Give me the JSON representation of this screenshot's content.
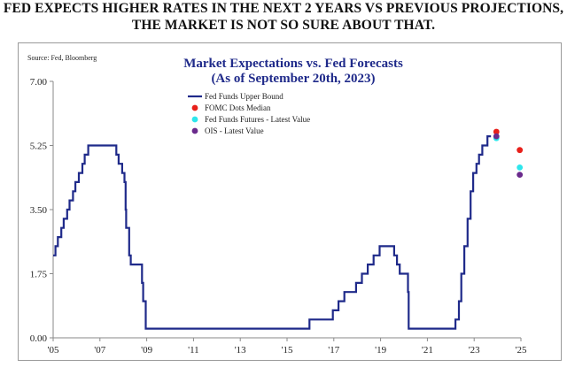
{
  "headline": {
    "line1": "FED EXPECTS HIGHER RATES IN THE NEXT 2 YEARS VS PREVIOUS PROJECTIONS,",
    "line2": "THE MARKET IS NOT SO SURE ABOUT THAT."
  },
  "chart_data": {
    "type": "line",
    "source": "Source: Fed, Bloomberg",
    "title": "Market Expectations vs. Fed Forecasts",
    "subtitle": "(As of September 20th, 2023)",
    "xlim": [
      2005.0,
      2025.0
    ],
    "ylim": [
      0.0,
      7.0
    ],
    "x_ticks": [
      2005,
      2007,
      2009,
      2011,
      2013,
      2015,
      2017,
      2019,
      2021,
      2023,
      2025
    ],
    "x_tick_labels": [
      "'05",
      "'07",
      "'09",
      "'11",
      "'13",
      "'15",
      "'17",
      "'19",
      "'21",
      "'23",
      "'25"
    ],
    "y_ticks": [
      0,
      1.75,
      3.5,
      5.25,
      7.0
    ],
    "y_tick_labels": [
      "0.00",
      "1.75",
      "3.50",
      "5.25",
      "7.00"
    ],
    "grid": false,
    "legend_position": "top-center",
    "series": [
      {
        "name": "Fed Funds Upper Bound",
        "color": "#1f2a8a",
        "kind": "step",
        "points": [
          [
            2005.0,
            2.25
          ],
          [
            2005.1,
            2.5
          ],
          [
            2005.2,
            2.75
          ],
          [
            2005.35,
            3.0
          ],
          [
            2005.45,
            3.25
          ],
          [
            2005.6,
            3.5
          ],
          [
            2005.7,
            3.75
          ],
          [
            2005.85,
            4.0
          ],
          [
            2005.95,
            4.25
          ],
          [
            2006.1,
            4.5
          ],
          [
            2006.25,
            4.75
          ],
          [
            2006.35,
            5.0
          ],
          [
            2006.5,
            5.25
          ],
          [
            2007.7,
            5.0
          ],
          [
            2007.8,
            4.75
          ],
          [
            2007.95,
            4.5
          ],
          [
            2008.05,
            4.25
          ],
          [
            2008.1,
            3.5
          ],
          [
            2008.12,
            3.0
          ],
          [
            2008.25,
            2.25
          ],
          [
            2008.32,
            2.0
          ],
          [
            2008.8,
            1.5
          ],
          [
            2008.85,
            1.0
          ],
          [
            2008.96,
            0.25
          ],
          [
            2015.96,
            0.5
          ],
          [
            2016.96,
            0.75
          ],
          [
            2017.2,
            1.0
          ],
          [
            2017.45,
            1.25
          ],
          [
            2017.95,
            1.5
          ],
          [
            2018.2,
            1.75
          ],
          [
            2018.45,
            2.0
          ],
          [
            2018.7,
            2.25
          ],
          [
            2018.96,
            2.5
          ],
          [
            2019.58,
            2.25
          ],
          [
            2019.7,
            2.0
          ],
          [
            2019.82,
            1.75
          ],
          [
            2020.17,
            1.25
          ],
          [
            2020.2,
            0.25
          ],
          [
            2022.2,
            0.5
          ],
          [
            2022.35,
            1.0
          ],
          [
            2022.45,
            1.75
          ],
          [
            2022.58,
            2.5
          ],
          [
            2022.72,
            3.25
          ],
          [
            2022.85,
            4.0
          ],
          [
            2022.96,
            4.5
          ],
          [
            2023.1,
            4.75
          ],
          [
            2023.21,
            5.0
          ],
          [
            2023.35,
            5.25
          ],
          [
            2023.57,
            5.5
          ],
          [
            2023.72,
            5.5
          ]
        ]
      },
      {
        "name": "FOMC Dots Median",
        "color": "#e8201a",
        "kind": "marker",
        "points": [
          [
            2023.95,
            5.625
          ],
          [
            2024.95,
            5.125
          ]
        ]
      },
      {
        "name": "Fed Funds Futures - Latest Value",
        "color": "#2ee6ec",
        "kind": "marker",
        "points": [
          [
            2023.95,
            5.45
          ],
          [
            2024.95,
            4.65
          ]
        ]
      },
      {
        "name": "OIS - Latest Value",
        "color": "#6a2a8c",
        "kind": "marker",
        "points": [
          [
            2023.95,
            5.5
          ],
          [
            2024.95,
            4.45
          ]
        ]
      }
    ]
  }
}
